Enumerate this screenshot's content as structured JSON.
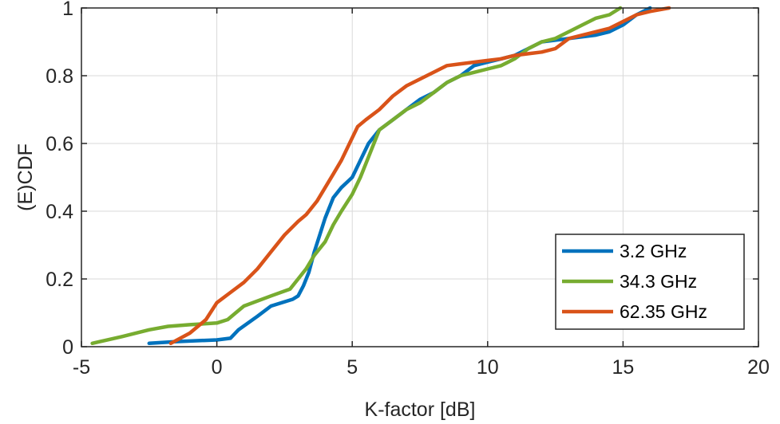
{
  "chart_data": {
    "type": "line",
    "title": "",
    "xlabel": "K-factor [dB]",
    "ylabel": "(E)CDF",
    "xlim": [
      -5,
      20
    ],
    "ylim": [
      0,
      1
    ],
    "xticks": [
      -5,
      0,
      5,
      10,
      15,
      20
    ],
    "xtick_labels": [
      "-5",
      "0",
      "5",
      "10",
      "15",
      "20"
    ],
    "yticks": [
      0,
      0.2,
      0.4,
      0.6,
      0.8,
      1
    ],
    "ytick_labels": [
      "0",
      "0.2",
      "0.4",
      "0.6",
      "0.8",
      "1"
    ],
    "grid": true,
    "legend_position": "bottom-right",
    "series": [
      {
        "name": "3.2 GHz",
        "color": "#0072BD",
        "x": [
          -2.5,
          -1.5,
          0.0,
          0.5,
          0.8,
          1.5,
          2.0,
          2.8,
          3.0,
          3.2,
          3.4,
          3.6,
          3.8,
          4.0,
          4.3,
          4.6,
          5.0,
          5.3,
          5.6,
          6.0,
          6.5,
          7.0,
          7.5,
          8.0,
          8.5,
          9.0,
          9.5,
          10.0,
          10.5,
          11.0,
          11.5,
          12.0,
          13.0,
          14.0,
          14.5,
          15.0,
          15.5,
          16.0
        ],
        "y": [
          0.01,
          0.015,
          0.02,
          0.025,
          0.05,
          0.09,
          0.12,
          0.14,
          0.15,
          0.18,
          0.22,
          0.28,
          0.33,
          0.38,
          0.44,
          0.47,
          0.5,
          0.55,
          0.6,
          0.64,
          0.67,
          0.7,
          0.73,
          0.75,
          0.78,
          0.8,
          0.83,
          0.84,
          0.85,
          0.86,
          0.88,
          0.9,
          0.91,
          0.92,
          0.93,
          0.95,
          0.98,
          1.0
        ]
      },
      {
        "name": "34.3 GHz",
        "color": "#77AC30",
        "x": [
          -4.6,
          -3.5,
          -2.5,
          -1.8,
          -1.0,
          0.0,
          0.4,
          0.7,
          1.0,
          2.0,
          2.7,
          3.0,
          3.3,
          3.6,
          4.0,
          4.3,
          4.6,
          5.0,
          5.3,
          5.6,
          6.0,
          6.5,
          7.0,
          7.5,
          8.0,
          8.5,
          9.0,
          9.5,
          10.0,
          10.5,
          11.0,
          11.5,
          12.0,
          12.5,
          13.0,
          13.5,
          14.0,
          14.5,
          14.9
        ],
        "y": [
          0.01,
          0.03,
          0.05,
          0.06,
          0.065,
          0.07,
          0.08,
          0.1,
          0.12,
          0.15,
          0.17,
          0.2,
          0.23,
          0.27,
          0.31,
          0.36,
          0.4,
          0.45,
          0.5,
          0.56,
          0.64,
          0.67,
          0.7,
          0.72,
          0.75,
          0.78,
          0.8,
          0.81,
          0.82,
          0.83,
          0.85,
          0.88,
          0.9,
          0.91,
          0.93,
          0.95,
          0.97,
          0.98,
          1.0
        ]
      },
      {
        "name": "62.35 GHz",
        "color": "#D95319",
        "x": [
          -1.7,
          -1.0,
          -0.4,
          0.0,
          0.5,
          1.0,
          1.5,
          2.0,
          2.5,
          3.0,
          3.3,
          3.7,
          4.0,
          4.3,
          4.6,
          4.9,
          5.2,
          5.5,
          6.0,
          6.5,
          7.0,
          7.5,
          8.0,
          8.5,
          9.0,
          9.5,
          10.0,
          10.5,
          11.0,
          11.5,
          12.0,
          12.5,
          13.0,
          13.5,
          14.0,
          14.5,
          15.0,
          15.5,
          16.0,
          16.7
        ],
        "y": [
          0.01,
          0.04,
          0.08,
          0.13,
          0.16,
          0.19,
          0.23,
          0.28,
          0.33,
          0.37,
          0.39,
          0.43,
          0.47,
          0.51,
          0.55,
          0.6,
          0.65,
          0.67,
          0.7,
          0.74,
          0.77,
          0.79,
          0.81,
          0.83,
          0.835,
          0.84,
          0.845,
          0.85,
          0.86,
          0.865,
          0.87,
          0.88,
          0.91,
          0.92,
          0.93,
          0.94,
          0.96,
          0.98,
          0.99,
          1.0
        ]
      }
    ]
  }
}
